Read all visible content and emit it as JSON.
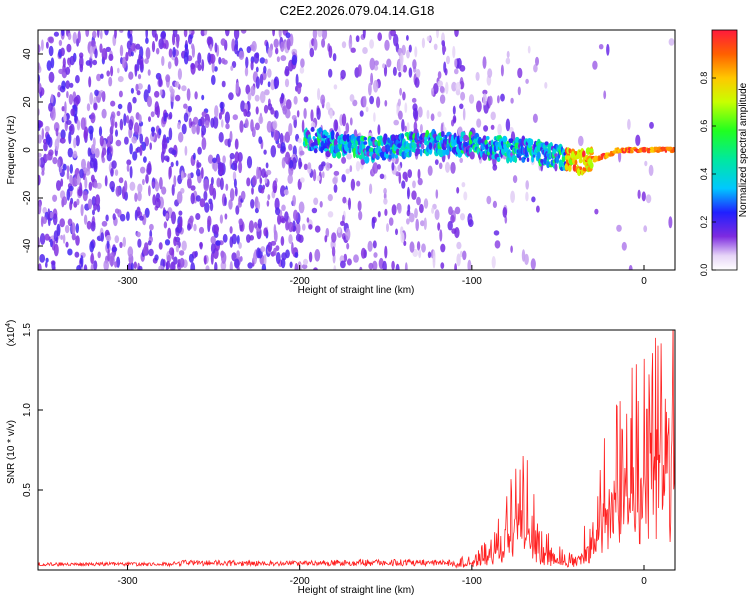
{
  "title": "C2E2.2026.079.04.14.G18",
  "chart_data": [
    {
      "type": "heatmap",
      "title": "C2E2.2026.079.04.14.G18",
      "xlabel": "Height of straight line (km)",
      "ylabel": "Frequency (Hz)",
      "xlim": [
        -352,
        18
      ],
      "ylim": [
        -50,
        50
      ],
      "x_ticks": [
        -300,
        -200,
        -100,
        0
      ],
      "x_tick_labels": [
        "-300",
        "-200",
        "-100",
        "0"
      ],
      "y_ticks": [
        -40,
        -20,
        0,
        20,
        40
      ],
      "y_tick_labels": [
        "-40",
        "-20",
        "0",
        "20",
        "40"
      ],
      "colorbar": {
        "label": "Normalized spectral amplitude",
        "range": [
          0,
          1
        ],
        "ticks": [
          0.0,
          0.2,
          0.4,
          0.6,
          0.8
        ],
        "tick_labels": [
          "0.0",
          "0.2",
          "0.4",
          "0.6",
          "0.8"
        ],
        "colormap": "rainbow"
      },
      "ridge": {
        "x": [
          -195,
          -185,
          -175,
          -165,
          -160,
          -140,
          -125,
          -110,
          -100,
          -90,
          -80,
          -70,
          -60,
          -50,
          -40,
          -35,
          -30,
          -25,
          -20,
          -15,
          -10,
          -5,
          0,
          10,
          18
        ],
        "y": [
          5,
          3,
          2,
          1,
          0,
          2,
          3,
          3,
          2,
          1,
          0,
          0,
          -1,
          -3,
          -5,
          -5,
          -4,
          -3,
          -2,
          0,
          0,
          0,
          0,
          0,
          0
        ]
      },
      "colors": {
        "grid_background": "#ffffff",
        "axis": "#000000"
      }
    },
    {
      "type": "line",
      "xlabel": "Height of straight line (km)",
      "ylabel": "SNR (10 * v/v)",
      "y_multiplier_label": "(x10",
      "y_multiplier_exp": "4",
      "y_multiplier_close": ")",
      "xlim": [
        -352,
        18
      ],
      "ylim": [
        0,
        1.5
      ],
      "x_ticks": [
        -300,
        -200,
        -100,
        0
      ],
      "x_tick_labels": [
        "-300",
        "-200",
        "-100",
        "0"
      ],
      "y_ticks": [
        0.5,
        1.0,
        1.5
      ],
      "y_tick_labels": [
        "0.5",
        "1.0",
        "1.5"
      ],
      "line_color": "#ff2020",
      "series_envelope": {
        "x": [
          -352,
          -280,
          -265,
          -200,
          -165,
          -110,
          -100,
          -90,
          -80,
          -75,
          -70,
          -65,
          -60,
          -55,
          -50,
          -45,
          -40,
          -35,
          -30,
          -25,
          -20,
          -15,
          -10,
          -5,
          0,
          5,
          10,
          15,
          18
        ],
        "y": [
          0.03,
          0.03,
          0.05,
          0.04,
          0.06,
          0.05,
          0.08,
          0.15,
          0.35,
          0.55,
          0.65,
          0.45,
          0.25,
          0.18,
          0.12,
          0.08,
          0.1,
          0.2,
          0.35,
          0.55,
          0.75,
          0.85,
          0.95,
          1.05,
          1.0,
          1.1,
          1.2,
          1.15,
          1.3
        ]
      }
    }
  ]
}
